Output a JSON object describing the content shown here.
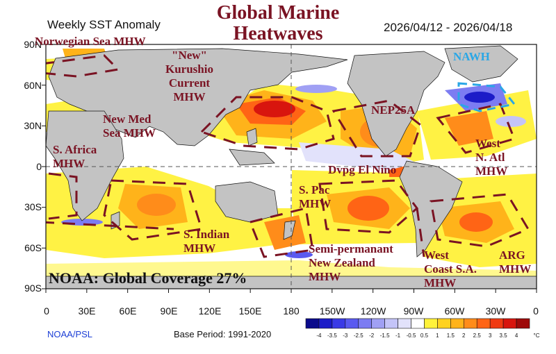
{
  "header": {
    "left_title": "Weekly SST Anomaly",
    "center_title": "Global Marine\nHeatwaves",
    "date_range": "2026/04/12 - 2026/04/18"
  },
  "axes": {
    "lat_labels": [
      "90N",
      "60N",
      "30N",
      "0",
      "30S",
      "60S",
      "90S"
    ],
    "lon_labels": [
      "0",
      "30E",
      "60E",
      "90E",
      "120E",
      "150E",
      "180",
      "150W",
      "120W",
      "90W",
      "60W",
      "30W",
      "0"
    ]
  },
  "labels": {
    "norwegian": "Norwegian Sea MHW",
    "kurushio": "\"New\"\nKurushio\nCurrent\nMHW",
    "nawh": "NAWH",
    "nep25a": "NEP25A",
    "med": "New Med\nSea MHW",
    "safrica": "S. Africa\nMHW",
    "west_natl": "West\nN. Atl\nMHW",
    "dvpg": "Dvpg El Nino",
    "spac": "S. Pac\nMHW",
    "sindian": "S. Indian\nMHW",
    "nz": "Semi-permanant\nNew Zealand\nMHW",
    "west_sa": "West\nCoast S.A.\nMHW",
    "arg": "ARG\nMHW"
  },
  "coverage": "NOAA: Global Coverage 27%",
  "footer": {
    "credit": "NOAA/PSL",
    "base_period": "Base Period: 1991-2020"
  },
  "colorbar": {
    "unit": "°C",
    "ticks": [
      "-4",
      "-3.5",
      "-3",
      "-2.5",
      "-2",
      "-1.5",
      "-1",
      "-0.5",
      "0.5",
      "1",
      "1.5",
      "2",
      "2.5",
      "3",
      "3.5",
      "4"
    ],
    "colors": [
      "#0a0a8c",
      "#1c1cc8",
      "#3a3ae6",
      "#5a5af0",
      "#7c7cf2",
      "#a0a0f4",
      "#c4c4f8",
      "#e2e2fb",
      "#ffffff",
      "#fff23a",
      "#ffd21f",
      "#ffb31a",
      "#ff8c1a",
      "#ff6415",
      "#f03a12",
      "#d8150e",
      "#9e0a0a"
    ]
  },
  "colors": {
    "title": "#7a1323",
    "land": "#c3c3c3",
    "credit": "#1d3fd6",
    "nawh": "#2aa7e6"
  }
}
